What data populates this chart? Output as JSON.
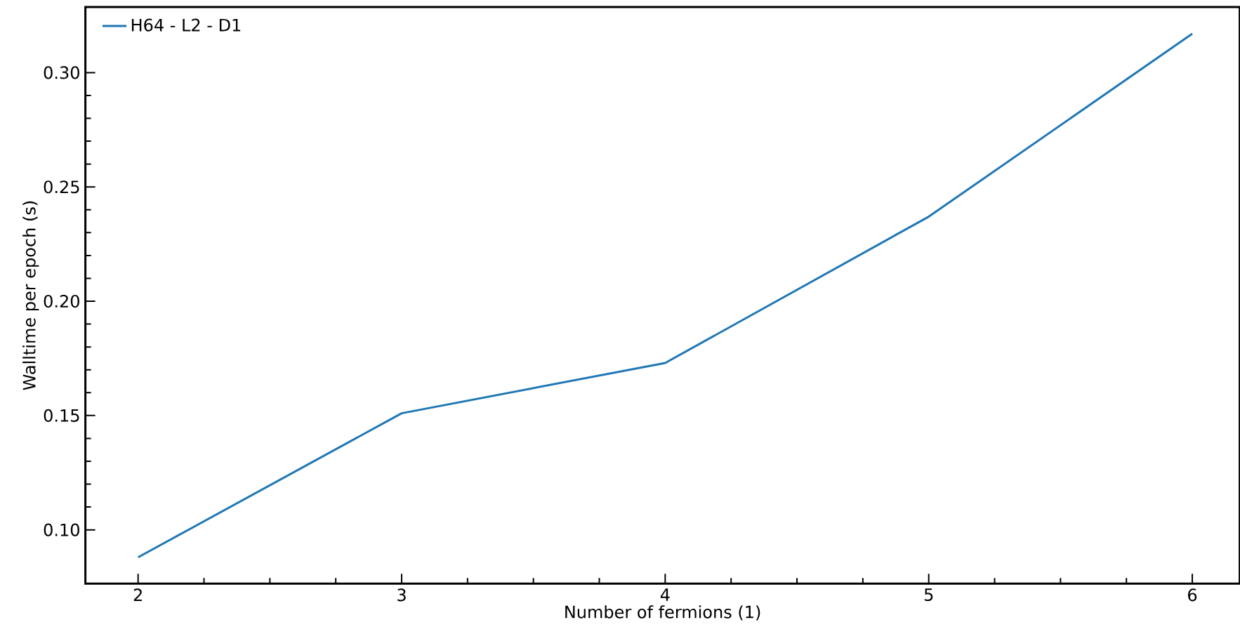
{
  "chart_data": {
    "type": "line",
    "xlabel": "Number of fermions (1)",
    "ylabel": "Walltime per epoch (s)",
    "x": [
      2,
      3,
      4,
      5,
      6
    ],
    "series": [
      {
        "name": "H64 - L2 - D1",
        "color": "#1f77b4",
        "values": [
          0.088,
          0.151,
          0.173,
          0.237,
          0.317
        ]
      }
    ],
    "xlim": [
      1.8,
      6.18
    ],
    "ylim": [
      0.0765,
      0.3287
    ],
    "xticks": [
      2,
      3,
      4,
      5,
      6
    ],
    "yticks": [
      {
        "value": 0.1,
        "label": "0.10"
      },
      {
        "value": 0.15,
        "label": "0.15"
      },
      {
        "value": 0.2,
        "label": "0.20"
      },
      {
        "value": 0.25,
        "label": "0.25"
      },
      {
        "value": 0.3,
        "label": "0.30"
      }
    ],
    "legend": "top left",
    "grid": false,
    "marker": "none",
    "line_style": "solid"
  }
}
